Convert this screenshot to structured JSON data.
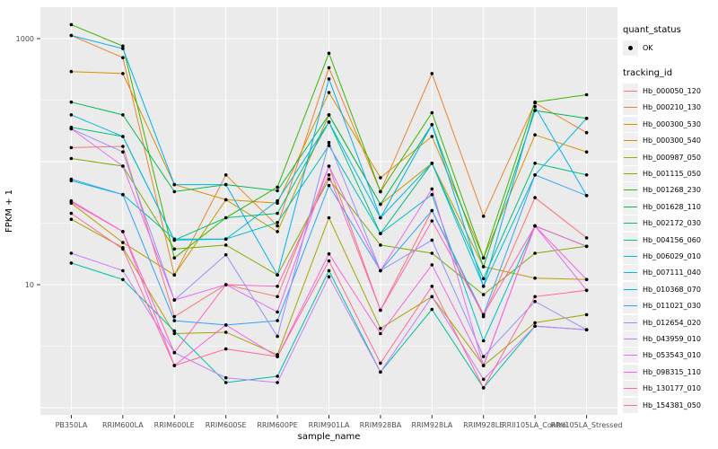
{
  "axes": {
    "x_title": "sample_name",
    "y_title": "FPKM + 1",
    "y_tick_labels": [
      "1000",
      "10"
    ],
    "x_categories": [
      "PB350LA",
      "RRIM600LA",
      "RRIM600LE",
      "RRIM600SE",
      "RRIM600PE",
      "RRIM901LA",
      "RRIM928BA",
      "RRIM928LA",
      "RRIM928LE",
      "RRII105LA_Control",
      "RRII105LA_Stressed"
    ]
  },
  "legend": {
    "quant_status_title": "quant_status",
    "quant_status_items": [
      {
        "label": "OK"
      }
    ],
    "tracking_title": "tracking_id"
  },
  "colors": {
    "panel_bg": "#EBEBEB",
    "grid": "#FFFFFF",
    "tick": "#333333",
    "tick_label": "#4D4D4D",
    "point": "#000000",
    "legend_key_bg": "#F0F0F0"
  },
  "chart_data": {
    "type": "line",
    "title": "",
    "xlabel": "sample_name",
    "ylabel": "FPKM + 1",
    "y_scale": "log10",
    "ylim": [
      0.83,
      1740
    ],
    "y_major_gridlines": [
      1,
      10,
      100,
      1000
    ],
    "y_minor_gridlines": [
      3.162,
      31.62,
      316.2
    ],
    "grid": "on",
    "legend_position": "right",
    "point_shape": "black dot at every series/sample intersection (quant_status OK)",
    "categories": [
      "PB350LA",
      "RRIM600LA",
      "RRIM600LE",
      "RRIM600SE",
      "RRIM600PE",
      "RRIM901LA",
      "RRIM928BA",
      "RRIM928LA",
      "RRIM928LE",
      "RRII105LA_Control",
      "RRII105LA_Stressed"
    ],
    "series": [
      {
        "name": "Hb_000050_120",
        "color": "#F8766D",
        "values": [
          130,
          133,
          5.5,
          10,
          8,
          92,
          6.2,
          40,
          5.5,
          51,
          24
        ]
      },
      {
        "name": "Hb_000210_130",
        "color": "#EA8331",
        "values": [
          1060,
          700,
          12,
          78,
          30,
          580,
          57,
          520,
          36,
          300,
          172
        ]
      },
      {
        "name": "Hb_000300_530",
        "color": "#D89000",
        "values": [
          540,
          520,
          65,
          49,
          46,
          365,
          74,
          160,
          16.5,
          165,
          120
        ]
      },
      {
        "name": "Hb_000300_540",
        "color": "#C09B00",
        "values": [
          46,
          22,
          12,
          49,
          27,
          240,
          45,
          97,
          14,
          11.3,
          11
        ]
      },
      {
        "name": "Hb_000987_050",
        "color": "#A3A500",
        "values": [
          34,
          20,
          4.0,
          4.1,
          2.7,
          35,
          4.4,
          8,
          2.2,
          4.9,
          5.7
        ]
      },
      {
        "name": "Hb_001115_050",
        "color": "#7CAE00",
        "values": [
          106,
          92,
          19.5,
          21,
          12,
          72,
          21,
          18,
          8.3,
          18,
          20.5
        ]
      },
      {
        "name": "Hb_001268_230",
        "color": "#39B600",
        "values": [
          1300,
          870,
          16.5,
          35,
          62,
          760,
          57,
          250,
          16.5,
          305,
          350
        ]
      },
      {
        "name": "Hb_001628_110",
        "color": "#00BB4E",
        "values": [
          305,
          240,
          57,
          65,
          58,
          240,
          45,
          200,
          14,
          260,
          225
        ]
      },
      {
        "name": "Hb_002172_030",
        "color": "#00BF7D",
        "values": [
          190,
          160,
          23,
          35,
          38,
          210,
          26,
          97,
          11.2,
          97,
          78
        ]
      },
      {
        "name": "Hb_004156_060",
        "color": "#00C1A3",
        "values": [
          15,
          11,
          4.2,
          1.6,
          1.8,
          13,
          1.95,
          6.3,
          1.45,
          4.6,
          4.3
        ]
      },
      {
        "name": "Hb_006029_010",
        "color": "#00BFC4",
        "values": [
          70,
          54,
          23.5,
          23.5,
          32,
          135,
          26,
          54,
          3.5,
          30,
          20.5
        ]
      },
      {
        "name": "Hb_007111_040",
        "color": "#00BAE0",
        "values": [
          240,
          160,
          23,
          23.5,
          48,
          210,
          35,
          97,
          9.7,
          78,
          225
        ]
      },
      {
        "name": "Hb_010368_070",
        "color": "#00B0F6",
        "values": [
          1060,
          830,
          65,
          65,
          12,
          470,
          35,
          200,
          9.7,
          280,
          53
        ]
      },
      {
        "name": "Hb_011021_030",
        "color": "#35A2FF",
        "values": [
          72,
          54,
          5.1,
          4.7,
          5.1,
          64,
          13,
          40,
          5.7,
          78,
          53
        ]
      },
      {
        "name": "Hb_012654_020",
        "color": "#9590FF",
        "values": [
          185,
          120,
          7.5,
          17.5,
          3.8,
          143,
          13,
          23,
          2.6,
          7.3,
          4.3
        ]
      },
      {
        "name": "Hb_043959_010",
        "color": "#C77CFF",
        "values": [
          18,
          13,
          2.8,
          1.75,
          1.6,
          11.6,
          1.95,
          8,
          1.7,
          4.6,
          4.3
        ]
      },
      {
        "name": "Hb_053543_010",
        "color": "#E76BF3",
        "values": [
          185,
          92,
          7.5,
          10,
          6,
          92,
          13,
          60,
          2.2,
          30,
          9
        ]
      },
      {
        "name": "Hb_098315_110",
        "color": "#FA62DB",
        "values": [
          47,
          27,
          2.2,
          4.7,
          2.6,
          17.8,
          4,
          14.5,
          2.2,
          30,
          11
        ]
      },
      {
        "name": "Hb_130177_010",
        "color": "#FF62BC",
        "values": [
          48,
          27,
          2.8,
          10,
          9.7,
          78,
          6.2,
          33,
          5.7,
          30,
          20.5
        ]
      },
      {
        "name": "Hb_154381_050",
        "color": "#FF6A98",
        "values": [
          38,
          19.5,
          2.2,
          3.0,
          2.6,
          15.6,
          2.3,
          9.7,
          1.45,
          8,
          9
        ]
      }
    ]
  }
}
